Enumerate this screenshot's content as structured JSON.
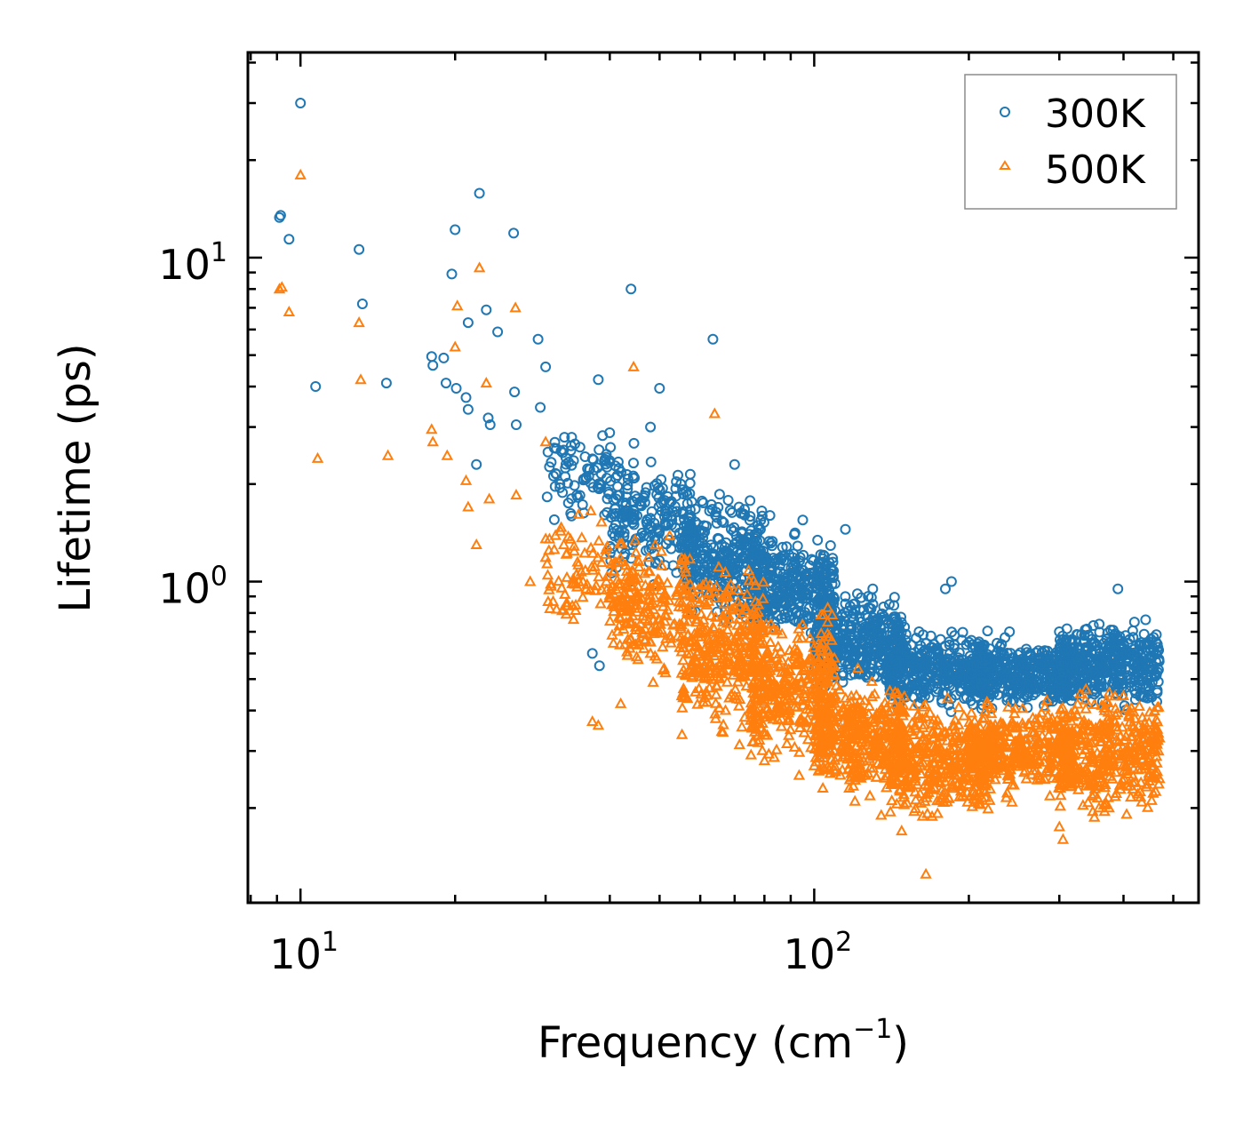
{
  "chart_data": {
    "type": "scatter",
    "title": "",
    "xlabel": "Frequency (cm",
    "xlabel_sup": "−1",
    "xlabel_close": ")",
    "ylabel": "Lifetime (ps)",
    "xscale": "log",
    "yscale": "log",
    "xlim": [
      7.9,
      560
    ],
    "ylim": [
      0.102,
      43
    ],
    "x_ticks": [
      {
        "base": "10",
        "exp": "1",
        "value": 10
      },
      {
        "base": "10",
        "exp": "2",
        "value": 100
      }
    ],
    "y_ticks": [
      {
        "base": "10",
        "exp": "0",
        "value": 1
      },
      {
        "base": "10",
        "exp": "1",
        "value": 10
      }
    ],
    "legend_position": "top-right",
    "series": [
      {
        "name": "300K",
        "marker": "circle",
        "color": "#1f77b4",
        "points": [
          [
            9.1,
            13.3
          ],
          [
            9.15,
            13.5
          ],
          [
            9.5,
            11.4
          ],
          [
            10.0,
            30.0
          ],
          [
            10.7,
            4.0
          ],
          [
            13.0,
            10.6
          ],
          [
            13.2,
            7.2
          ],
          [
            14.7,
            4.1
          ],
          [
            18.0,
            4.95
          ],
          [
            18.1,
            4.65
          ],
          [
            19.0,
            4.9
          ],
          [
            19.2,
            4.1
          ],
          [
            19.7,
            8.9
          ],
          [
            20.0,
            12.2
          ],
          [
            20.1,
            3.95
          ],
          [
            21.0,
            3.7
          ],
          [
            21.2,
            3.4
          ],
          [
            21.2,
            6.3
          ],
          [
            22.0,
            2.3
          ],
          [
            22.3,
            15.8
          ],
          [
            23.0,
            6.9
          ],
          [
            23.2,
            3.2
          ],
          [
            23.4,
            3.05
          ],
          [
            24.2,
            5.9
          ],
          [
            26.0,
            11.9
          ],
          [
            26.1,
            3.85
          ],
          [
            26.3,
            3.05
          ],
          [
            29.0,
            5.6
          ],
          [
            29.3,
            3.45
          ],
          [
            30.0,
            4.6
          ],
          [
            32.0,
            2.0
          ],
          [
            35.0,
            2.6
          ],
          [
            37.0,
            0.6
          ],
          [
            38.0,
            4.2
          ],
          [
            38.2,
            0.55
          ],
          [
            44.0,
            8.0
          ],
          [
            48.0,
            3.0
          ],
          [
            50.0,
            3.95
          ],
          [
            55.0,
            2.0
          ],
          [
            63.5,
            5.6
          ],
          [
            70.0,
            2.3
          ],
          [
            82.0,
            1.6
          ],
          [
            95.0,
            1.55
          ],
          [
            115.0,
            1.45
          ],
          [
            130.0,
            0.95
          ],
          [
            140.0,
            0.85
          ],
          [
            160.0,
            0.7
          ],
          [
            180.0,
            0.95
          ],
          [
            185.0,
            1.0
          ],
          [
            200.0,
            0.65
          ],
          [
            240.0,
            0.7
          ],
          [
            300.0,
            0.7
          ],
          [
            390.0,
            0.95
          ],
          [
            420.0,
            0.75
          ]
        ],
        "clusters": [
          [
            [
              30,
              45
            ],
            [
              1.4,
              3.2
            ],
            100
          ],
          [
            [
              40,
              58
            ],
            [
              0.9,
              2.6
            ],
            180
          ],
          [
            [
              55,
              80
            ],
            [
              0.7,
              2.0
            ],
            320
          ],
          [
            [
              75,
              110
            ],
            [
              0.6,
              1.5
            ],
            360
          ],
          [
            [
              100,
              150
            ],
            [
              0.42,
              1.0
            ],
            380
          ],
          [
            [
              140,
              220
            ],
            [
              0.38,
              0.75
            ],
            380
          ],
          [
            [
              200,
              320
            ],
            [
              0.38,
              0.7
            ],
            380
          ],
          [
            [
              300,
              470
            ],
            [
              0.38,
              0.82
            ],
            420
          ]
        ]
      },
      {
        "name": "500K",
        "marker": "triangle",
        "color": "#ff7f0e",
        "points": [
          [
            9.1,
            8.0
          ],
          [
            9.2,
            8.1
          ],
          [
            9.5,
            6.8
          ],
          [
            10.0,
            18.0
          ],
          [
            10.8,
            2.4
          ],
          [
            13.0,
            6.3
          ],
          [
            13.1,
            4.2
          ],
          [
            14.8,
            2.45
          ],
          [
            18.0,
            2.95
          ],
          [
            18.1,
            2.7
          ],
          [
            19.3,
            2.45
          ],
          [
            20.0,
            5.3
          ],
          [
            20.2,
            7.1
          ],
          [
            21.0,
            2.05
          ],
          [
            21.2,
            1.7
          ],
          [
            22.0,
            1.3
          ],
          [
            22.3,
            9.3
          ],
          [
            23.0,
            4.1
          ],
          [
            23.3,
            1.8
          ],
          [
            26.2,
            7.0
          ],
          [
            26.3,
            1.85
          ],
          [
            28.0,
            1.0
          ],
          [
            30.0,
            2.7
          ],
          [
            36.0,
            0.95
          ],
          [
            37.0,
            0.37
          ],
          [
            38.0,
            0.36
          ],
          [
            42.0,
            0.42
          ],
          [
            44.5,
            4.6
          ],
          [
            48.0,
            0.6
          ],
          [
            56.0,
            0.44
          ],
          [
            64.0,
            3.3
          ],
          [
            80.0,
            0.28
          ],
          [
            100.0,
            0.27
          ],
          [
            120.0,
            0.21
          ],
          [
            135.0,
            0.19
          ],
          [
            148.0,
            0.17
          ],
          [
            165.0,
            0.125
          ],
          [
            300.0,
            0.175
          ],
          [
            305.0,
            0.16
          ]
        ],
        "clusters": [
          [
            [
              30,
              45
            ],
            [
              0.6,
              1.8
            ],
            100
          ],
          [
            [
              40,
              58
            ],
            [
              0.45,
              1.5
            ],
            200
          ],
          [
            [
              55,
              80
            ],
            [
              0.3,
              1.3
            ],
            340
          ],
          [
            [
              75,
              110
            ],
            [
              0.24,
              0.9
            ],
            380
          ],
          [
            [
              100,
              150
            ],
            [
              0.2,
              0.55
            ],
            400
          ],
          [
            [
              140,
              220
            ],
            [
              0.17,
              0.48
            ],
            400
          ],
          [
            [
              200,
              320
            ],
            [
              0.2,
              0.45
            ],
            400
          ],
          [
            [
              300,
              470
            ],
            [
              0.17,
              0.52
            ],
            420
          ]
        ]
      }
    ]
  }
}
